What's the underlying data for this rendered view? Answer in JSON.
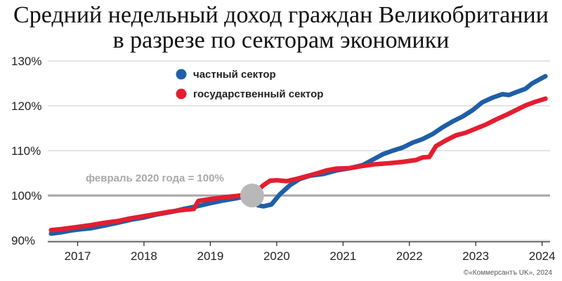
{
  "title_line1": "Средний недельный доход граждан Великобритании",
  "title_line2": "в разрезе по секторам экономики",
  "credit": "©«Коммерсантъ UK», 2024",
  "chart_data": {
    "type": "line",
    "title": "Средний недельный доход граждан Великобритании в разрезе по секторам экономики",
    "yticks": [
      "90%",
      "100%",
      "110%",
      "120%",
      "130%"
    ],
    "xticks": [
      "2017",
      "2018",
      "2019",
      "2020",
      "2021",
      "2022",
      "2023",
      "2024"
    ],
    "ylim": [
      90,
      130
    ],
    "xlim": [
      2016.55,
      2024.12
    ],
    "grid": "horizontal",
    "legend_position": "top-center",
    "baseline": {
      "value": 100,
      "label": "февраль 2020 года = 100%"
    },
    "marker": {
      "x": 2019.63,
      "y": 100
    },
    "series": [
      {
        "name": "частный сектор",
        "color": "#1f5fa6",
        "points": [
          [
            2016.6,
            91.5
          ],
          [
            2016.75,
            91.8
          ],
          [
            2016.9,
            92.2
          ],
          [
            2017.0,
            92.4
          ],
          [
            2017.2,
            92.7
          ],
          [
            2017.4,
            93.3
          ],
          [
            2017.6,
            93.9
          ],
          [
            2017.8,
            94.6
          ],
          [
            2018.0,
            95.1
          ],
          [
            2018.2,
            95.8
          ],
          [
            2018.4,
            96.3
          ],
          [
            2018.6,
            97.0
          ],
          [
            2018.8,
            97.6
          ],
          [
            2019.0,
            98.3
          ],
          [
            2019.2,
            98.9
          ],
          [
            2019.4,
            99.4
          ],
          [
            2019.58,
            100.0
          ],
          [
            2019.66,
            100.4
          ],
          [
            2019.72,
            97.8
          ],
          [
            2019.8,
            97.6
          ],
          [
            2019.92,
            98.0
          ],
          [
            2020.05,
            100.3
          ],
          [
            2020.2,
            102.3
          ],
          [
            2020.35,
            103.7
          ],
          [
            2020.5,
            104.4
          ],
          [
            2020.7,
            104.8
          ],
          [
            2020.9,
            105.6
          ],
          [
            2021.1,
            106.1
          ],
          [
            2021.3,
            106.8
          ],
          [
            2021.45,
            108.0
          ],
          [
            2021.6,
            109.2
          ],
          [
            2021.75,
            110.0
          ],
          [
            2021.9,
            110.7
          ],
          [
            2022.05,
            111.8
          ],
          [
            2022.2,
            112.6
          ],
          [
            2022.35,
            113.7
          ],
          [
            2022.5,
            115.2
          ],
          [
            2022.65,
            116.5
          ],
          [
            2022.8,
            117.6
          ],
          [
            2022.95,
            119.0
          ],
          [
            2023.1,
            120.8
          ],
          [
            2023.25,
            121.8
          ],
          [
            2023.4,
            122.6
          ],
          [
            2023.5,
            122.4
          ],
          [
            2023.62,
            123.1
          ],
          [
            2023.75,
            123.8
          ],
          [
            2023.85,
            125.0
          ],
          [
            2023.95,
            125.8
          ],
          [
            2024.05,
            126.6
          ]
        ]
      },
      {
        "name": "государственный сектор",
        "color": "#e31e30",
        "points": [
          [
            2016.6,
            92.3
          ],
          [
            2016.75,
            92.5
          ],
          [
            2016.9,
            92.8
          ],
          [
            2017.0,
            93.0
          ],
          [
            2017.2,
            93.4
          ],
          [
            2017.4,
            93.9
          ],
          [
            2017.6,
            94.3
          ],
          [
            2017.8,
            94.9
          ],
          [
            2018.0,
            95.4
          ],
          [
            2018.2,
            95.9
          ],
          [
            2018.4,
            96.4
          ],
          [
            2018.6,
            96.8
          ],
          [
            2018.75,
            97.0
          ],
          [
            2018.82,
            98.8
          ],
          [
            2019.0,
            99.2
          ],
          [
            2019.2,
            99.6
          ],
          [
            2019.4,
            99.9
          ],
          [
            2019.58,
            100.2
          ],
          [
            2019.7,
            100.9
          ],
          [
            2019.8,
            102.3
          ],
          [
            2019.9,
            103.3
          ],
          [
            2020.0,
            103.4
          ],
          [
            2020.15,
            103.2
          ],
          [
            2020.3,
            103.7
          ],
          [
            2020.45,
            104.3
          ],
          [
            2020.6,
            104.9
          ],
          [
            2020.75,
            105.6
          ],
          [
            2020.9,
            106.0
          ],
          [
            2021.1,
            106.1
          ],
          [
            2021.3,
            106.6
          ],
          [
            2021.5,
            107.0
          ],
          [
            2021.7,
            107.2
          ],
          [
            2021.9,
            107.5
          ],
          [
            2022.1,
            107.9
          ],
          [
            2022.2,
            108.5
          ],
          [
            2022.3,
            108.6
          ],
          [
            2022.4,
            111.0
          ],
          [
            2022.55,
            112.3
          ],
          [
            2022.7,
            113.4
          ],
          [
            2022.85,
            114.0
          ],
          [
            2023.0,
            114.9
          ],
          [
            2023.15,
            115.8
          ],
          [
            2023.3,
            116.9
          ],
          [
            2023.45,
            117.9
          ],
          [
            2023.6,
            119.0
          ],
          [
            2023.75,
            120.1
          ],
          [
            2023.9,
            120.9
          ],
          [
            2024.05,
            121.6
          ]
        ]
      }
    ]
  }
}
